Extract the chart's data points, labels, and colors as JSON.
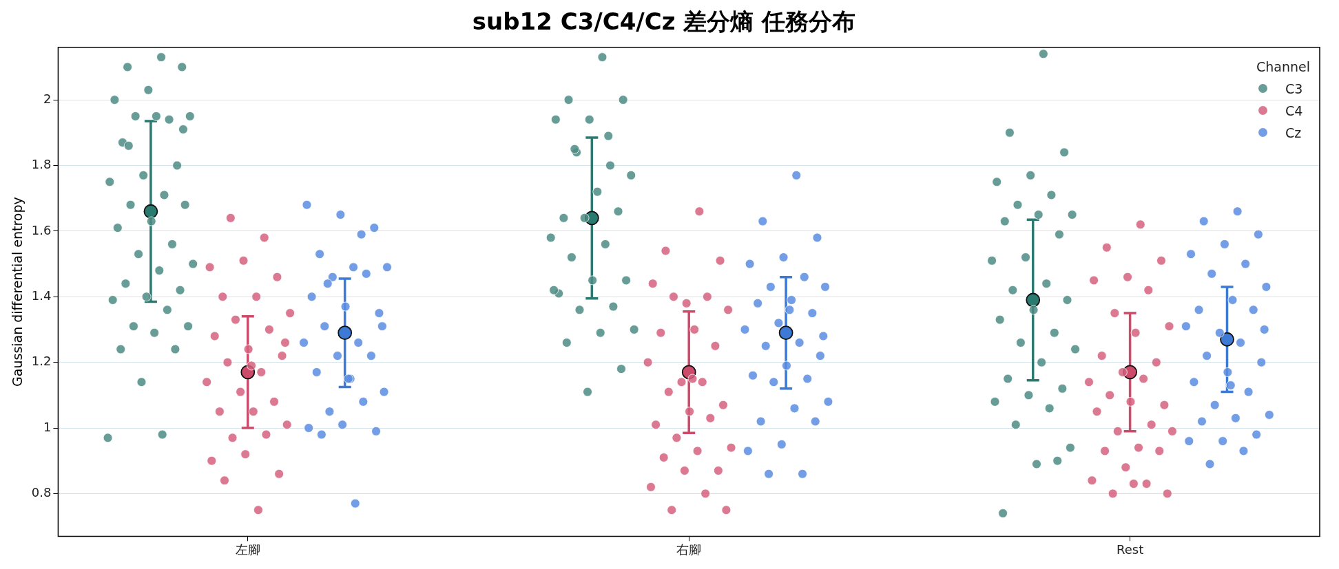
{
  "chart_data": {
    "type": "scatter",
    "title": "sub12 C3/C4/Cz 差分熵 任務分布",
    "ylabel": "Gaussian differential entropy",
    "legend_title": "Channel",
    "legend": "top right",
    "grid": "y",
    "marker": "circle",
    "categories": [
      "左腳",
      "右腳",
      "Rest"
    ],
    "ylim": [
      0.67,
      2.16
    ],
    "yticks": [
      0.8,
      1.0,
      1.2,
      1.4,
      1.6,
      1.8,
      2.0
    ],
    "series": [
      {
        "name": "C3",
        "color": "#4c8c84",
        "x": [
          "左腳",
          "左腳",
          "左腳",
          "左腳",
          "左腳",
          "左腳",
          "左腳",
          "左腳",
          "左腳",
          "左腳",
          "左腳",
          "左腳",
          "左腳",
          "左腳",
          "左腳",
          "左腳",
          "左腳",
          "左腳",
          "左腳",
          "左腳",
          "左腳",
          "左腳",
          "左腳",
          "左腳",
          "左腳",
          "左腳",
          "左腳",
          "左腳",
          "左腳",
          "左腳",
          "左腳",
          "左腳",
          "左腳",
          "左腳",
          "左腳",
          "左腳",
          "左腳",
          "右腳",
          "右腳",
          "右腳",
          "右腳",
          "右腳",
          "右腳",
          "右腳",
          "右腳",
          "右腳",
          "右腳",
          "右腳",
          "右腳",
          "右腳",
          "右腳",
          "右腳",
          "右腳",
          "右腳",
          "右腳",
          "右腳",
          "右腳",
          "右腳",
          "右腳",
          "右腳",
          "右腳",
          "右腳",
          "右腳",
          "右腳",
          "右腳",
          "Rest",
          "Rest",
          "Rest",
          "Rest",
          "Rest",
          "Rest",
          "Rest",
          "Rest",
          "Rest",
          "Rest",
          "Rest",
          "Rest",
          "Rest",
          "Rest",
          "Rest",
          "Rest",
          "Rest",
          "Rest",
          "Rest",
          "Rest",
          "Rest",
          "Rest",
          "Rest",
          "Rest",
          "Rest",
          "Rest",
          "Rest",
          "Rest",
          "Rest",
          "Rest",
          "Rest",
          "Rest"
        ],
        "values": [
          2.13,
          2.1,
          2.1,
          2.03,
          2.0,
          1.94,
          1.95,
          1.95,
          1.95,
          1.87,
          1.8,
          1.77,
          1.75,
          1.71,
          1.68,
          1.68,
          1.63,
          1.61,
          1.56,
          1.53,
          1.5,
          1.48,
          1.44,
          1.42,
          1.4,
          1.39,
          1.36,
          1.31,
          1.31,
          1.29,
          1.24,
          1.24,
          1.14,
          0.97,
          0.98,
          1.86,
          1.91,
          2.13,
          2.0,
          2.0,
          1.94,
          1.94,
          1.8,
          1.84,
          1.77,
          1.72,
          1.64,
          1.66,
          1.64,
          1.58,
          1.56,
          1.52,
          1.45,
          1.45,
          1.41,
          1.37,
          1.36,
          1.3,
          1.29,
          1.26,
          1.18,
          1.11,
          1.42,
          1.89,
          1.85,
          2.14,
          1.9,
          1.84,
          1.77,
          1.75,
          1.71,
          1.68,
          1.65,
          1.65,
          1.63,
          1.59,
          1.52,
          1.51,
          1.44,
          1.42,
          1.39,
          1.36,
          1.33,
          1.29,
          1.26,
          1.24,
          1.2,
          1.15,
          1.12,
          1.1,
          1.08,
          1.06,
          1.01,
          0.94,
          0.89,
          0.74,
          0.9
        ]
      },
      {
        "name": "C4",
        "color": "#d6617f",
        "x": [
          "左腳",
          "左腳",
          "左腳",
          "左腳",
          "左腳",
          "左腳",
          "左腳",
          "左腳",
          "左腳",
          "左腳",
          "左腳",
          "左腳",
          "左腳",
          "左腳",
          "左腳",
          "左腳",
          "左腳",
          "左腳",
          "左腳",
          "左腳",
          "左腳",
          "左腳",
          "左腳",
          "左腳",
          "左腳",
          "左腳",
          "左腳",
          "左腳",
          "左腳",
          "左腳",
          "右腳",
          "右腳",
          "右腳",
          "右腳",
          "右腳",
          "右腳",
          "右腳",
          "右腳",
          "右腳",
          "右腳",
          "右腳",
          "右腳",
          "右腳",
          "右腳",
          "右腳",
          "右腳",
          "右腳",
          "右腳",
          "右腳",
          "右腳",
          "右腳",
          "右腳",
          "右腳",
          "右腳",
          "右腳",
          "右腳",
          "右腳",
          "右腳",
          "右腳",
          "右腳",
          "Rest",
          "Rest",
          "Rest",
          "Rest",
          "Rest",
          "Rest",
          "Rest",
          "Rest",
          "Rest",
          "Rest",
          "Rest",
          "Rest",
          "Rest",
          "Rest",
          "Rest",
          "Rest",
          "Rest",
          "Rest",
          "Rest",
          "Rest",
          "Rest",
          "Rest",
          "Rest",
          "Rest",
          "Rest",
          "Rest",
          "Rest",
          "Rest",
          "Rest",
          "Rest"
        ],
        "values": [
          0.75,
          0.84,
          0.86,
          0.92,
          0.9,
          0.98,
          0.97,
          1.01,
          1.05,
          1.05,
          1.08,
          1.11,
          1.14,
          1.17,
          1.2,
          1.22,
          1.24,
          1.28,
          1.3,
          1.33,
          1.35,
          1.4,
          1.4,
          1.46,
          1.51,
          1.49,
          1.58,
          1.64,
          1.26,
          1.19,
          1.66,
          1.54,
          1.51,
          1.38,
          1.44,
          1.4,
          1.4,
          1.36,
          1.3,
          1.29,
          1.25,
          1.14,
          1.2,
          1.14,
          1.11,
          1.07,
          1.05,
          1.01,
          1.03,
          0.97,
          0.94,
          0.93,
          0.91,
          0.87,
          0.87,
          0.82,
          0.8,
          0.75,
          0.75,
          1.15,
          1.62,
          1.55,
          1.51,
          1.46,
          1.45,
          1.42,
          1.35,
          1.31,
          1.29,
          1.22,
          1.2,
          1.17,
          1.14,
          1.15,
          1.1,
          1.07,
          1.08,
          1.05,
          1.01,
          0.99,
          0.99,
          0.94,
          0.93,
          0.93,
          0.88,
          0.84,
          0.83,
          0.8,
          0.8,
          0.83
        ]
      },
      {
        "name": "Cz",
        "color": "#5b8de0",
        "x": [
          "左腳",
          "左腳",
          "左腳",
          "左腳",
          "左腳",
          "左腳",
          "左腳",
          "左腳",
          "左腳",
          "左腳",
          "左腳",
          "左腳",
          "左腳",
          "左腳",
          "左腳",
          "左腳",
          "左腳",
          "左腳",
          "左腳",
          "左腳",
          "左腳",
          "左腳",
          "左腳",
          "左腳",
          "左腳",
          "左腳",
          "左腳",
          "左腳",
          "左腳",
          "左腳",
          "右腳",
          "右腳",
          "右腳",
          "右腳",
          "右腳",
          "右腳",
          "右腳",
          "右腳",
          "右腳",
          "右腳",
          "右腳",
          "右腳",
          "右腳",
          "右腳",
          "右腳",
          "右腳",
          "右腳",
          "右腳",
          "右腳",
          "右腳",
          "右腳",
          "右腳",
          "右腳",
          "右腳",
          "右腳",
          "右腳",
          "右腳",
          "右腳",
          "右腳",
          "右腳",
          "Rest",
          "Rest",
          "Rest",
          "Rest",
          "Rest",
          "Rest",
          "Rest",
          "Rest",
          "Rest",
          "Rest",
          "Rest",
          "Rest",
          "Rest",
          "Rest",
          "Rest",
          "Rest",
          "Rest",
          "Rest",
          "Rest",
          "Rest",
          "Rest",
          "Rest",
          "Rest",
          "Rest",
          "Rest",
          "Rest",
          "Rest",
          "Rest",
          "Rest",
          "Rest"
        ],
        "values": [
          0.77,
          0.98,
          0.99,
          1.01,
          1.0,
          1.08,
          1.05,
          1.11,
          1.15,
          1.17,
          1.22,
          1.22,
          1.26,
          1.26,
          1.31,
          1.35,
          1.37,
          1.4,
          1.47,
          1.46,
          1.49,
          1.49,
          1.53,
          1.61,
          1.65,
          1.68,
          1.59,
          1.44,
          1.31,
          1.15,
          1.77,
          1.63,
          1.58,
          1.52,
          1.5,
          1.46,
          1.43,
          1.43,
          1.39,
          1.38,
          1.35,
          1.32,
          1.3,
          1.26,
          1.25,
          1.22,
          1.19,
          1.16,
          1.15,
          1.14,
          1.08,
          1.06,
          1.02,
          1.02,
          0.95,
          0.93,
          0.86,
          0.86,
          1.28,
          1.36,
          1.66,
          1.63,
          1.59,
          1.56,
          1.53,
          1.5,
          1.47,
          1.43,
          1.39,
          1.36,
          1.36,
          1.29,
          1.31,
          1.26,
          1.22,
          1.2,
          1.17,
          1.14,
          1.11,
          1.07,
          1.04,
          1.03,
          1.02,
          0.98,
          0.96,
          0.96,
          0.93,
          0.89,
          1.3,
          1.13
        ]
      },
      {
        "color": "#2a7a70",
        "x": [
          "左腳",
          "右腳",
          "Rest"
        ],
        "values": [
          1.66,
          1.64,
          1.39
        ],
        "errors": [
          0.275,
          0.245,
          0.245
        ]
      },
      {
        "color": "#cc4a6a",
        "x": [
          "左腳",
          "右腳",
          "Rest"
        ],
        "values": [
          1.17,
          1.17,
          1.17
        ],
        "errors": [
          0.17,
          0.185,
          0.18
        ]
      },
      {
        "color": "#3d7ad6",
        "x": [
          "左腳",
          "右腳",
          "Rest"
        ],
        "values": [
          1.29,
          1.29,
          1.27
        ],
        "errors": [
          0.165,
          0.17,
          0.16
        ]
      }
    ]
  }
}
